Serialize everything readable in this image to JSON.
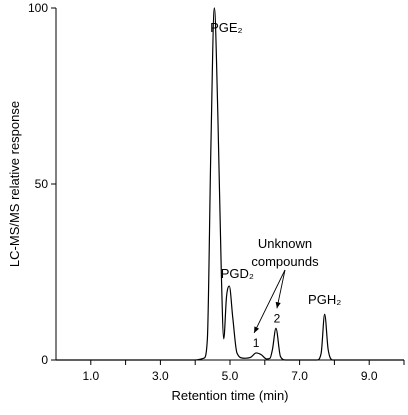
{
  "chart_data": {
    "type": "line",
    "title": "",
    "xlabel": "Retention time (min)",
    "ylabel": "LC-MS/MS relative response",
    "xlim": [
      0,
      10.0
    ],
    "ylim": [
      0,
      100
    ],
    "x_ticks": [
      1.0,
      2.0,
      3.0,
      4.0,
      5.0,
      6.0,
      7.0,
      8.0,
      9.0,
      10.0
    ],
    "x_tick_labels": [
      "1.0",
      "",
      "3.0",
      "",
      "5.0",
      "",
      "7.0",
      "",
      "9.0",
      ""
    ],
    "y_ticks": [
      0,
      50,
      100
    ],
    "y_tick_labels": [
      "0",
      "50",
      "100"
    ],
    "grid": false,
    "legend": "none",
    "series": [
      {
        "x": [
          0.0,
          3.6,
          4.0,
          4.25,
          4.35,
          4.45,
          4.55,
          4.65,
          4.75,
          4.82,
          4.9,
          4.98,
          5.08,
          5.2,
          5.4,
          5.6,
          5.75,
          5.9,
          6.05,
          6.15,
          6.22,
          6.32,
          6.45,
          6.6,
          7.0,
          7.5,
          7.62,
          7.72,
          7.82,
          7.95,
          8.3,
          10.0
        ],
        "y": [
          0,
          0,
          0,
          0.5,
          6,
          60,
          100,
          70,
          25,
          6,
          18,
          21,
          12,
          2,
          0.5,
          0.8,
          2,
          1.5,
          0.3,
          0.5,
          3,
          9,
          1,
          0,
          0,
          0,
          2,
          13,
          3,
          0,
          0,
          0
        ]
      }
    ],
    "peak_labels": [
      {
        "label": "PGE₂",
        "x": 4.55,
        "y": 100
      },
      {
        "label": "PGD₂",
        "x": 4.98,
        "y": 21
      },
      {
        "label": "PGH₂",
        "x": 7.72,
        "y": 13
      }
    ],
    "annotations": [
      {
        "text_lines": [
          "Unknown",
          "compounds"
        ]
      },
      {
        "label": "1",
        "x": 5.75,
        "y": 2
      },
      {
        "label": "2",
        "x": 6.32,
        "y": 9
      }
    ]
  }
}
